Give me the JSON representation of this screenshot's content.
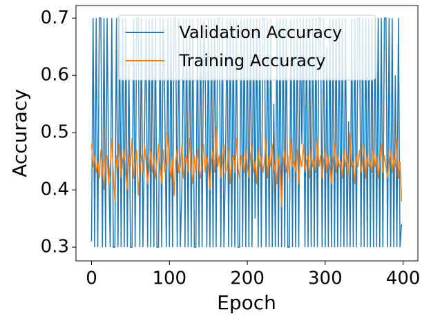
{
  "chart_data": {
    "type": "line",
    "x_label": "Epoch",
    "y_label": "Accuracy",
    "legend": "upper center",
    "xlim": [
      -19.95,
      418.95
    ],
    "xticks": [
      0,
      100,
      200,
      300,
      400
    ],
    "ylim": [
      0.276,
      0.722
    ],
    "yticks": [
      0.3,
      0.4,
      0.5,
      0.6,
      0.7
    ],
    "x": [
      0,
      2,
      4,
      6,
      8,
      10,
      12,
      14,
      16,
      18,
      20,
      22,
      24,
      26,
      28,
      30,
      32,
      34,
      36,
      38,
      40,
      42,
      44,
      46,
      48,
      50,
      52,
      54,
      56,
      58,
      60,
      62,
      64,
      66,
      68,
      70,
      72,
      74,
      76,
      78,
      80,
      82,
      84,
      86,
      88,
      90,
      92,
      94,
      96,
      98,
      100,
      102,
      104,
      106,
      108,
      110,
      112,
      114,
      116,
      118,
      120,
      122,
      124,
      126,
      128,
      130,
      132,
      134,
      136,
      138,
      140,
      142,
      144,
      146,
      148,
      150,
      152,
      154,
      156,
      158,
      160,
      162,
      164,
      166,
      168,
      170,
      172,
      174,
      176,
      178,
      180,
      182,
      184,
      186,
      188,
      190,
      192,
      194,
      196,
      198,
      200,
      202,
      204,
      206,
      208,
      210,
      212,
      214,
      216,
      218,
      220,
      222,
      224,
      226,
      228,
      230,
      232,
      234,
      236,
      238,
      240,
      242,
      244,
      246,
      248,
      250,
      252,
      254,
      256,
      258,
      260,
      262,
      264,
      266,
      268,
      270,
      272,
      274,
      276,
      278,
      280,
      282,
      284,
      286,
      288,
      290,
      292,
      294,
      296,
      298,
      300,
      302,
      304,
      306,
      308,
      310,
      312,
      314,
      316,
      318,
      320,
      322,
      324,
      326,
      328,
      330,
      332,
      334,
      336,
      338,
      340,
      342,
      344,
      346,
      348,
      350,
      352,
      354,
      356,
      358,
      360,
      362,
      364,
      366,
      368,
      370,
      372,
      374,
      376,
      378,
      380,
      382,
      384,
      386,
      388,
      390,
      392,
      394,
      396,
      398
    ],
    "series": [
      {
        "name": "Validation Accuracy",
        "color": "#1f77b4",
        "values": [
          0.31,
          0.7,
          0.3,
          0.7,
          0.3,
          0.7,
          0.7,
          0.3,
          0.7,
          0.3,
          0.7,
          0.45,
          0.3,
          0.7,
          0.3,
          0.3,
          0.7,
          0.3,
          0.7,
          0.3,
          0.7,
          0.3,
          0.7,
          0.3,
          0.62,
          0.3,
          0.3,
          0.7,
          0.3,
          0.7,
          0.7,
          0.3,
          0.7,
          0.3,
          0.5,
          0.7,
          0.3,
          0.7,
          0.3,
          0.7,
          0.3,
          0.7,
          0.3,
          0.3,
          0.7,
          0.3,
          0.7,
          0.55,
          0.3,
          0.7,
          0.3,
          0.7,
          0.3,
          0.7,
          0.7,
          0.3,
          0.7,
          0.3,
          0.4,
          0.7,
          0.3,
          0.7,
          0.3,
          0.7,
          0.3,
          0.7,
          0.3,
          0.3,
          0.7,
          0.3,
          0.7,
          0.3,
          0.7,
          0.6,
          0.3,
          0.7,
          0.3,
          0.7,
          0.3,
          0.7,
          0.3,
          0.7,
          0.7,
          0.3,
          0.7,
          0.3,
          0.45,
          0.7,
          0.3,
          0.7,
          0.3,
          0.7,
          0.3,
          0.7,
          0.3,
          0.3,
          0.7,
          0.3,
          0.7,
          0.3,
          0.7,
          0.3,
          0.7,
          0.3,
          0.7,
          0.35,
          0.7,
          0.3,
          0.7,
          0.3,
          0.7,
          0.7,
          0.3,
          0.7,
          0.3,
          0.7,
          0.3,
          0.55,
          0.3,
          0.7,
          0.3,
          0.7,
          0.3,
          0.7,
          0.3,
          0.7,
          0.3,
          0.3,
          0.7,
          0.3,
          0.7,
          0.3,
          0.7,
          0.3,
          0.7,
          0.48,
          0.7,
          0.3,
          0.7,
          0.3,
          0.7,
          0.3,
          0.7,
          0.3,
          0.7,
          0.3,
          0.7,
          0.7,
          0.3,
          0.7,
          0.3,
          0.65,
          0.3,
          0.7,
          0.3,
          0.7,
          0.3,
          0.7,
          0.3,
          0.7,
          0.3,
          0.7,
          0.3,
          0.7,
          0.3,
          0.52,
          0.3,
          0.7,
          0.3,
          0.7,
          0.3,
          0.7,
          0.7,
          0.3,
          0.7,
          0.3,
          0.7,
          0.3,
          0.7,
          0.3,
          0.7,
          0.3,
          0.7,
          0.3,
          0.7,
          0.3,
          0.7,
          0.3,
          0.7,
          0.7,
          0.3,
          0.7,
          0.3,
          0.7,
          0.3,
          0.6,
          0.3,
          0.7,
          0.3,
          0.34
        ]
      },
      {
        "name": "Training Accuracy",
        "color": "#ff7f0e",
        "values": [
          0.48,
          0.44,
          0.46,
          0.43,
          0.45,
          0.42,
          0.47,
          0.44,
          0.4,
          0.45,
          0.46,
          0.41,
          0.44,
          0.49,
          0.43,
          0.38,
          0.46,
          0.44,
          0.48,
          0.42,
          0.45,
          0.47,
          0.43,
          0.4,
          0.46,
          0.44,
          0.49,
          0.42,
          0.45,
          0.47,
          0.39,
          0.44,
          0.46,
          0.43,
          0.48,
          0.45,
          0.41,
          0.44,
          0.47,
          0.43,
          0.46,
          0.42,
          0.45,
          0.48,
          0.44,
          0.41,
          0.47,
          0.43,
          0.45,
          0.5,
          0.44,
          0.42,
          0.46,
          0.39,
          0.45,
          0.47,
          0.43,
          0.44,
          0.48,
          0.42,
          0.45,
          0.46,
          0.43,
          0.49,
          0.44,
          0.41,
          0.46,
          0.43,
          0.47,
          0.44,
          0.42,
          0.45,
          0.48,
          0.43,
          0.46,
          0.44,
          0.4,
          0.45,
          0.47,
          0.43,
          0.51,
          0.44,
          0.46,
          0.42,
          0.45,
          0.48,
          0.43,
          0.44,
          0.47,
          0.41,
          0.45,
          0.46,
          0.43,
          0.49,
          0.44,
          0.42,
          0.46,
          0.45,
          0.43,
          0.47,
          0.44,
          0.42,
          0.46,
          0.48,
          0.43,
          0.45,
          0.41,
          0.47,
          0.44,
          0.46,
          0.43,
          0.45,
          0.49,
          0.42,
          0.46,
          0.44,
          0.48,
          0.43,
          0.45,
          0.41,
          0.46,
          0.44,
          0.37,
          0.45,
          0.47,
          0.43,
          0.46,
          0.42,
          0.49,
          0.44,
          0.45,
          0.43,
          0.47,
          0.41,
          0.46,
          0.44,
          0.48,
          0.43,
          0.45,
          0.46,
          0.42,
          0.47,
          0.44,
          0.45,
          0.43,
          0.49,
          0.44,
          0.46,
          0.42,
          0.45,
          0.47,
          0.43,
          0.46,
          0.44,
          0.41,
          0.45,
          0.48,
          0.43,
          0.46,
          0.44,
          0.45,
          0.42,
          0.47,
          0.44,
          0.46,
          0.43,
          0.5,
          0.44,
          0.45,
          0.41,
          0.46,
          0.44,
          0.47,
          0.43,
          0.45,
          0.48,
          0.42,
          0.46,
          0.44,
          0.45,
          0.43,
          0.47,
          0.44,
          0.46,
          0.42,
          0.45,
          0.48,
          0.43,
          0.46,
          0.44,
          0.42,
          0.45,
          0.47,
          0.43,
          0.46,
          0.44,
          0.49,
          0.42,
          0.45,
          0.38
        ]
      }
    ]
  }
}
